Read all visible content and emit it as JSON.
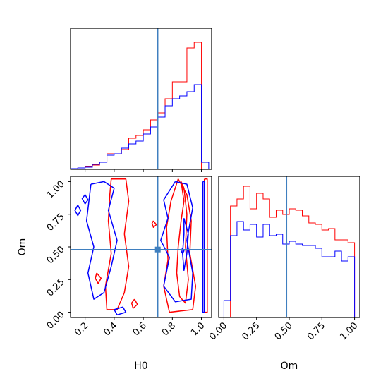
{
  "colors": {
    "series_a": "#ff0000",
    "series_b": "#0000ff",
    "truth": "#3f7fbf",
    "frame": "#000000"
  },
  "chart_data": [
    {
      "panel": "marginal-H0",
      "type": "step-histogram",
      "xlim": [
        0.1,
        1.07
      ],
      "ylim": [
        0,
        1.0
      ],
      "truth": 0.7,
      "bin_edges": [
        0.1,
        0.15,
        0.2,
        0.25,
        0.3,
        0.35,
        0.4,
        0.45,
        0.5,
        0.55,
        0.6,
        0.65,
        0.7,
        0.75,
        0.8,
        0.85,
        0.9,
        0.95,
        1.0,
        1.05
      ],
      "series": [
        {
          "color": "red",
          "values": [
            0.005,
            0.01,
            0.02,
            0.03,
            0.05,
            0.11,
            0.11,
            0.14,
            0.22,
            0.24,
            0.28,
            0.35,
            0.4,
            0.5,
            0.62,
            0.62,
            0.86,
            0.9,
            0.0
          ]
        },
        {
          "color": "blue",
          "values": [
            0.005,
            0.01,
            0.015,
            0.035,
            0.05,
            0.1,
            0.11,
            0.15,
            0.18,
            0.2,
            0.25,
            0.3,
            0.37,
            0.45,
            0.5,
            0.52,
            0.55,
            0.6,
            0.05
          ]
        }
      ]
    },
    {
      "panel": "marginal-Om",
      "type": "step-histogram",
      "xlim": [
        -0.04,
        1.04
      ],
      "ylim": [
        0,
        1.0
      ],
      "truth": 0.48,
      "bin_edges": [
        0.0,
        0.05,
        0.1,
        0.15,
        0.2,
        0.25,
        0.3,
        0.35,
        0.4,
        0.45,
        0.5,
        0.55,
        0.6,
        0.65,
        0.7,
        0.75,
        0.8,
        0.85,
        0.9,
        0.95,
        1.0
      ],
      "series": [
        {
          "color": "red",
          "values": [
            0.0,
            0.79,
            0.84,
            0.93,
            0.77,
            0.88,
            0.84,
            0.71,
            0.76,
            0.73,
            0.77,
            0.76,
            0.72,
            0.67,
            0.66,
            0.62,
            0.63,
            0.55,
            0.55,
            0.53
          ]
        },
        {
          "color": "blue",
          "values": [
            0.12,
            0.58,
            0.68,
            0.62,
            0.66,
            0.57,
            0.66,
            0.58,
            0.59,
            0.52,
            0.54,
            0.52,
            0.51,
            0.51,
            0.49,
            0.43,
            0.43,
            0.47,
            0.4,
            0.43
          ]
        }
      ]
    },
    {
      "panel": "joint-H0-Om",
      "type": "contour",
      "xlim": [
        0.1,
        1.07
      ],
      "ylim": [
        -0.04,
        1.04
      ],
      "truth": {
        "x": 0.7,
        "y": 0.48
      },
      "series": [
        {
          "color": "red",
          "contours": [
            [
              [
                0.38,
                1.02
              ],
              [
                0.48,
                1.02
              ],
              [
                0.5,
                0.85
              ],
              [
                0.47,
                0.6
              ],
              [
                0.5,
                0.35
              ],
              [
                0.47,
                0.15
              ],
              [
                0.42,
                0.02
              ],
              [
                0.35,
                0.02
              ],
              [
                0.34,
                0.2
              ],
              [
                0.38,
                0.45
              ],
              [
                0.36,
                0.7
              ],
              [
                0.37,
                0.9
              ],
              [
                0.38,
                1.02
              ]
            ],
            [
              [
                0.84,
                1.02
              ],
              [
                0.9,
                0.9
              ],
              [
                0.93,
                0.7
              ],
              [
                0.92,
                0.45
              ],
              [
                0.96,
                0.2
              ],
              [
                0.94,
                0.02
              ],
              [
                0.78,
                0.0
              ],
              [
                0.74,
                0.2
              ],
              [
                0.77,
                0.4
              ],
              [
                0.76,
                0.65
              ],
              [
                0.79,
                0.85
              ],
              [
                0.84,
                1.02
              ]
            ],
            [
              [
                0.86,
                1.0
              ],
              [
                0.88,
                0.85
              ],
              [
                0.86,
                0.7
              ],
              [
                0.84,
                0.5
              ],
              [
                0.83,
                0.3
              ],
              [
                0.85,
                0.12
              ],
              [
                0.89,
                0.07
              ],
              [
                0.91,
                0.25
              ],
              [
                0.89,
                0.5
              ],
              [
                0.9,
                0.75
              ],
              [
                0.88,
                0.95
              ],
              [
                0.86,
                1.0
              ]
            ],
            [
              [
                1.02,
                1.02
              ],
              [
                1.04,
                1.02
              ],
              [
                1.04,
                0.0
              ],
              [
                1.02,
                0.0
              ],
              [
                1.02,
                1.02
              ]
            ],
            [
              [
                0.28,
                0.3
              ],
              [
                0.31,
                0.26
              ],
              [
                0.29,
                0.22
              ],
              [
                0.27,
                0.26
              ],
              [
                0.28,
                0.3
              ]
            ],
            [
              [
                0.54,
                0.1
              ],
              [
                0.56,
                0.06
              ],
              [
                0.53,
                0.03
              ],
              [
                0.52,
                0.07
              ],
              [
                0.54,
                0.1
              ]
            ],
            [
              [
                0.67,
                0.7
              ],
              [
                0.69,
                0.67
              ],
              [
                0.67,
                0.65
              ],
              [
                0.66,
                0.68
              ],
              [
                0.67,
                0.7
              ]
            ]
          ]
        },
        {
          "color": "blue",
          "contours": [
            [
              [
                0.24,
                0.98
              ],
              [
                0.33,
                1.0
              ],
              [
                0.4,
                0.95
              ],
              [
                0.36,
                0.78
              ],
              [
                0.42,
                0.55
              ],
              [
                0.38,
                0.35
              ],
              [
                0.33,
                0.15
              ],
              [
                0.26,
                0.1
              ],
              [
                0.22,
                0.3
              ],
              [
                0.26,
                0.5
              ],
              [
                0.21,
                0.7
              ],
              [
                0.24,
                0.98
              ]
            ],
            [
              [
                0.82,
                1.0
              ],
              [
                0.9,
                0.98
              ],
              [
                0.94,
                0.8
              ],
              [
                0.9,
                0.55
              ],
              [
                0.94,
                0.3
              ],
              [
                0.93,
                0.1
              ],
              [
                0.82,
                0.08
              ],
              [
                0.74,
                0.2
              ],
              [
                0.78,
                0.42
              ],
              [
                0.72,
                0.55
              ],
              [
                0.77,
                0.72
              ],
              [
                0.74,
                0.86
              ],
              [
                0.82,
                1.0
              ]
            ],
            [
              [
                0.88,
                0.72
              ],
              [
                0.91,
                0.6
              ],
              [
                0.9,
                0.45
              ],
              [
                0.88,
                0.32
              ],
              [
                0.87,
                0.45
              ],
              [
                0.88,
                0.6
              ],
              [
                0.88,
                0.72
              ]
            ],
            [
              [
                0.15,
                0.82
              ],
              [
                0.17,
                0.78
              ],
              [
                0.15,
                0.74
              ],
              [
                0.13,
                0.78
              ],
              [
                0.15,
                0.82
              ]
            ],
            [
              [
                0.2,
                0.9
              ],
              [
                0.22,
                0.86
              ],
              [
                0.2,
                0.83
              ],
              [
                0.18,
                0.87
              ],
              [
                0.2,
                0.9
              ]
            ],
            [
              [
                0.4,
                0.02
              ],
              [
                0.46,
                0.04
              ],
              [
                0.48,
                0.0
              ],
              [
                0.42,
                -0.02
              ],
              [
                0.4,
                0.02
              ]
            ],
            [
              [
                0.87,
                0.49
              ],
              [
                0.88,
                0.47
              ],
              [
                0.87,
                0.45
              ],
              [
                0.86,
                0.47
              ],
              [
                0.87,
                0.49
              ]
            ],
            [
              [
                1.01,
                1.0
              ],
              [
                1.02,
                1.0
              ],
              [
                1.02,
                0.0
              ],
              [
                1.01,
                0.0
              ],
              [
                1.01,
                1.0
              ]
            ]
          ]
        }
      ],
      "x_ticks": [
        "0.2",
        "0.4",
        "0.6",
        "0.8",
        "1.0"
      ],
      "y_ticks": [
        "0.00",
        "0.25",
        "0.50",
        "0.75",
        "1.00"
      ],
      "xlabel": "H0",
      "ylabel": "Om"
    }
  ],
  "om_x_ticks": [
    "0.00",
    "0.25",
    "0.50",
    "0.75",
    "1.00"
  ],
  "om_xlabel": "Om"
}
